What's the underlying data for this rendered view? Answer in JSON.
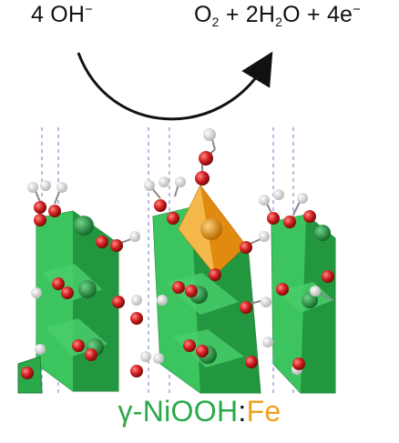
{
  "reaction": {
    "reactant_coeff": "4",
    "reactant": "OH",
    "reactant_charge": "−",
    "product_o2_base": "O",
    "product_o2_sub": "2",
    "plus1": "+",
    "product_water_coeff": "2",
    "product_water_h": "H",
    "product_water_sub": "2",
    "product_water_o": "O",
    "plus2": "+",
    "electron_coeff": "4",
    "electron": "e",
    "electron_charge": "−"
  },
  "caption": {
    "host": "γ-NiOOH",
    "separator": ":",
    "dopant": "Fe"
  },
  "colors": {
    "host": "#2aa84a",
    "dopant": "#f0a020",
    "oxygen": "#d42020",
    "hydrogen": "#f2f2f2",
    "arrow": "#111111"
  }
}
